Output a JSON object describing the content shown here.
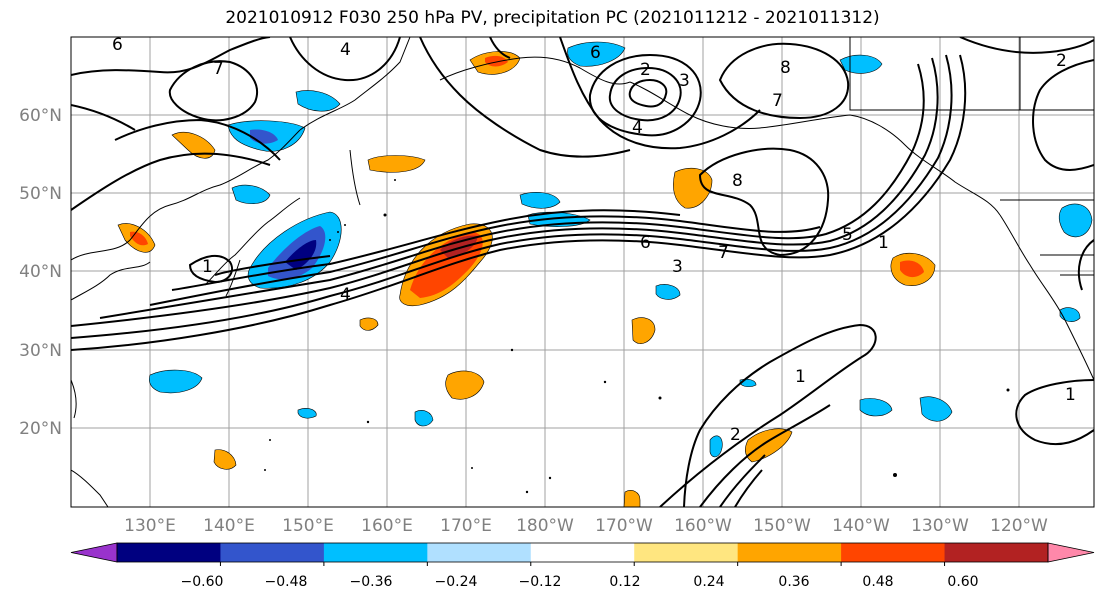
{
  "title": "2021010912 F030 250 hPa PV, precipitation PC (2021011212 - 2021011312)",
  "map": {
    "lat_labels": [
      "60°N",
      "50°N",
      "40°N",
      "30°N",
      "20°N"
    ],
    "lon_labels": [
      "130°E",
      "140°E",
      "150°E",
      "160°E",
      "170°E",
      "180°W",
      "170°W",
      "160°W",
      "150°W",
      "140°W",
      "130°W",
      "120°W"
    ],
    "pv_contour_labels": [
      "6",
      "7",
      "6",
      "4",
      "2",
      "3",
      "4",
      "8",
      "7",
      "8",
      "6",
      "7",
      "3",
      "4",
      "5",
      "1",
      "1",
      "1",
      "1",
      "2",
      "2"
    ]
  },
  "colorbar": {
    "tick_labels": [
      "−0.60",
      "−0.48",
      "−0.36",
      "−0.24",
      "−0.12",
      "0.12",
      "0.24",
      "0.36",
      "0.48",
      "0.60"
    ],
    "colors": [
      "#9933cc",
      "#000080",
      "#3355cc",
      "#00bfff",
      "#b0e0ff",
      "#ffffff",
      "#ffe680",
      "#ffa500",
      "#ff4500",
      "#b22222",
      "#ff88aa"
    ]
  }
}
